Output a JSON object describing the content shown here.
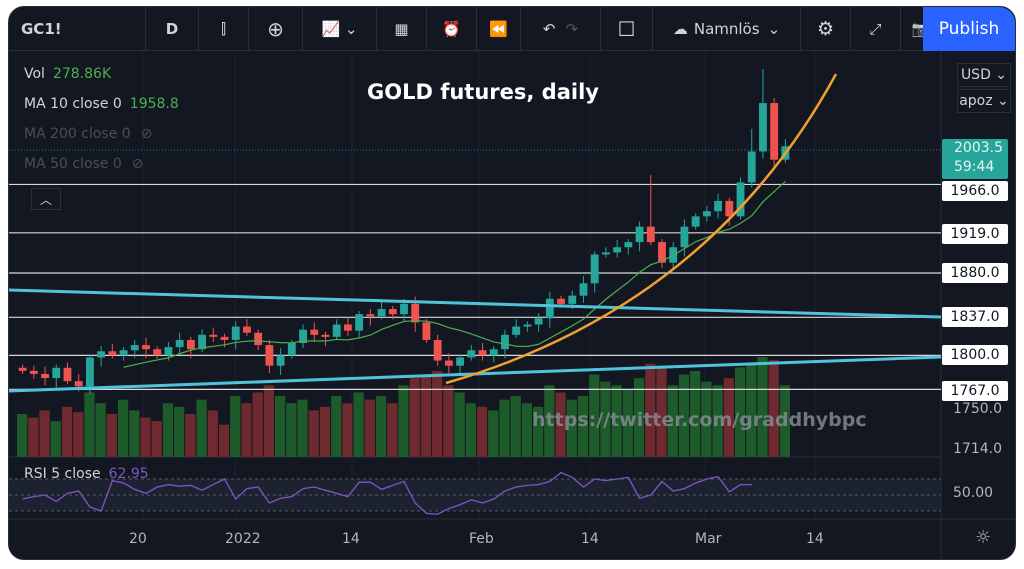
{
  "toolbar": {
    "symbol": "GC1!",
    "interval": "D",
    "layout_name": "Namnlös",
    "publish": "Publish"
  },
  "legend": {
    "vol_label": "Vol",
    "vol_value": "278.86K",
    "ma10_label": "MA 10 close 0",
    "ma10_value": "1958.8",
    "ma200_label": "MA 200 close 0",
    "ma50_label": "MA 50 close 0",
    "rsi_label": "RSI 5 close",
    "rsi_value": "62.95"
  },
  "overlay": {
    "title": "GOLD futures, daily",
    "watermark": "https://twitter.com/graddhybpc"
  },
  "axis": {
    "currency": "USD",
    "scale": "apoz",
    "last_price": "2003.5",
    "countdown": "59:44",
    "levels": [
      "1966.0",
      "1919.0",
      "1880.0",
      "1837.0",
      "1800.0",
      "1767.0"
    ],
    "ticks": [
      "1750.0",
      "1714.0"
    ],
    "rsi_tick": "50.00",
    "time_labels": [
      "20",
      "2022",
      "14",
      "Feb",
      "14",
      "Mar",
      "14"
    ]
  },
  "colors": {
    "up": "#26a69a",
    "down": "#ef5350",
    "ma": "#4caf50",
    "cyan": "#4fc3dc",
    "orange": "#f0a030",
    "rsi": "#7e57c2"
  },
  "chart_data": {
    "type": "candlestick",
    "closes": [
      1785,
      1782,
      1778,
      1788,
      1775,
      1770,
      1798,
      1804,
      1800,
      1805,
      1810,
      1806,
      1800,
      1808,
      1815,
      1806,
      1820,
      1818,
      1815,
      1828,
      1822,
      1810,
      1790,
      1800,
      1812,
      1825,
      1820,
      1818,
      1830,
      1824,
      1840,
      1838,
      1845,
      1840,
      1850,
      1832,
      1815,
      1795,
      1790,
      1798,
      1805,
      1800,
      1806,
      1820,
      1828,
      1830,
      1836,
      1855,
      1850,
      1858,
      1870,
      1898,
      1900,
      1905,
      1910,
      1925,
      1910,
      1890,
      1905,
      1925,
      1935,
      1940,
      1950,
      1935,
      1968,
      1998,
      2045,
      1990,
      2003
    ],
    "spike_highs": {
      "56": 1975,
      "65": 2020,
      "66": 2078
    },
    "volumes": [
      120,
      110,
      130,
      100,
      140,
      125,
      180,
      150,
      120,
      160,
      130,
      110,
      100,
      150,
      140,
      120,
      160,
      130,
      90,
      170,
      150,
      180,
      200,
      170,
      150,
      160,
      130,
      140,
      170,
      150,
      180,
      160,
      170,
      150,
      200,
      220,
      230,
      240,
      200,
      180,
      150,
      140,
      130,
      160,
      170,
      150,
      140,
      200,
      180,
      160,
      170,
      230,
      210,
      200,
      190,
      220,
      260,
      250,
      200,
      230,
      240,
      210,
      200,
      220,
      250,
      260,
      279,
      270,
      200
    ],
    "rsi": [
      45,
      48,
      50,
      42,
      52,
      55,
      35,
      30,
      68,
      65,
      57,
      52,
      60,
      63,
      61,
      62,
      56,
      63,
      70,
      45,
      58,
      60,
      40,
      46,
      48,
      58,
      60,
      56,
      52,
      48,
      66,
      66,
      57,
      62,
      67,
      40,
      27,
      26,
      33,
      38,
      44,
      40,
      45,
      55,
      60,
      62,
      63,
      67,
      78,
      72,
      60,
      70,
      68,
      70,
      72,
      46,
      50,
      67,
      55,
      58,
      65,
      70,
      73,
      54,
      62.95,
      62.95,
      62.95,
      62.95,
      62.95
    ],
    "ylim": [
      1700,
      2090
    ],
    "horizontal_levels": [
      1966,
      1919,
      1880,
      1837,
      1800,
      1767
    ]
  }
}
